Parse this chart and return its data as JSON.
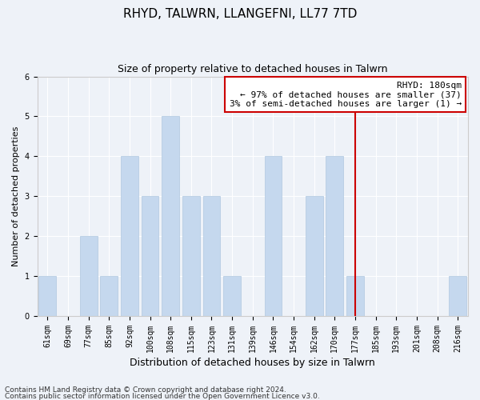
{
  "title": "RHYD, TALWRN, LLANGEFNI, LL77 7TD",
  "subtitle": "Size of property relative to detached houses in Talwrn",
  "xlabel": "Distribution of detached houses by size in Talwrn",
  "ylabel": "Number of detached properties",
  "categories": [
    "61sqm",
    "69sqm",
    "77sqm",
    "85sqm",
    "92sqm",
    "100sqm",
    "108sqm",
    "115sqm",
    "123sqm",
    "131sqm",
    "139sqm",
    "146sqm",
    "154sqm",
    "162sqm",
    "170sqm",
    "177sqm",
    "185sqm",
    "193sqm",
    "201sqm",
    "208sqm",
    "216sqm"
  ],
  "values": [
    1,
    0,
    2,
    1,
    4,
    3,
    5,
    3,
    3,
    1,
    0,
    4,
    0,
    3,
    4,
    1,
    0,
    0,
    0,
    0,
    1
  ],
  "bar_color": "#c5d8ee",
  "bar_edge_color": "#b0c8e0",
  "vline_x_index": 15,
  "vline_color": "#cc0000",
  "ylim": [
    0,
    6
  ],
  "yticks": [
    0,
    1,
    2,
    3,
    4,
    5,
    6
  ],
  "annotation_title": "RHYD: 180sqm",
  "annotation_line1": "← 97% of detached houses are smaller (37)",
  "annotation_line2": "3% of semi-detached houses are larger (1) →",
  "annotation_box_color": "#cc0000",
  "footnote1": "Contains HM Land Registry data © Crown copyright and database right 2024.",
  "footnote2": "Contains public sector information licensed under the Open Government Licence v3.0.",
  "title_fontsize": 11,
  "subtitle_fontsize": 9,
  "tick_fontsize": 7,
  "annotation_fontsize": 8,
  "footnote_fontsize": 6.5,
  "xlabel_fontsize": 9,
  "ylabel_fontsize": 8,
  "background_color": "#eef2f8",
  "plot_background": "#eef2f8",
  "grid_color": "#ffffff"
}
